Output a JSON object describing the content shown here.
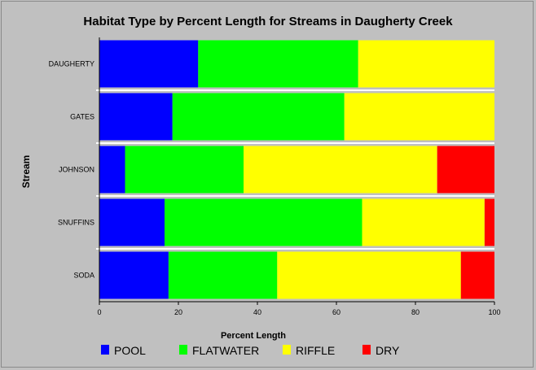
{
  "chart_data": {
    "type": "bar",
    "orientation": "horizontal",
    "stacked": true,
    "title": "Habitat Type by Percent Length for Streams in Daugherty Creek",
    "xlabel": "Percent Length",
    "ylabel": "Stream",
    "xlim": [
      0,
      100
    ],
    "xticks": [
      "0",
      "20",
      "40",
      "60",
      "80",
      "100"
    ],
    "categories": [
      "DAUGHERTY",
      "GATES",
      "JOHNSON",
      "SNUFFINS",
      "SODA"
    ],
    "series": [
      {
        "name": "POOL",
        "color": "#0000ff",
        "values": [
          25,
          18.5,
          6.5,
          16.5,
          17.5
        ]
      },
      {
        "name": "FLATWATER",
        "color": "#00ff00",
        "values": [
          40.5,
          43.5,
          30,
          50,
          27.5
        ]
      },
      {
        "name": "RIFFLE",
        "color": "#ffff00",
        "values": [
          34.5,
          38,
          49,
          31,
          46.5
        ]
      },
      {
        "name": "DRY",
        "color": "#ff0000",
        "values": [
          0,
          0,
          14.5,
          2.5,
          8.5
        ]
      }
    ],
    "legend_position": "bottom",
    "grid": false
  }
}
